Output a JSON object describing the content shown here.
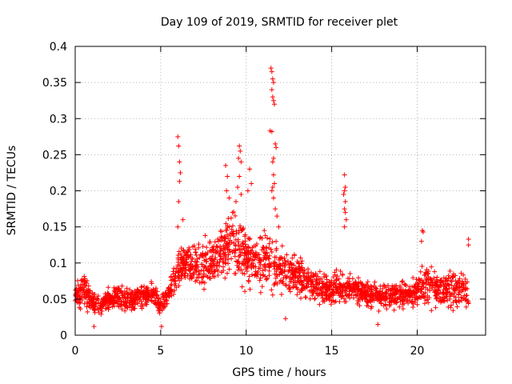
{
  "chart_data": {
    "type": "scatter",
    "title": "Day 109 of 2019, SRMTID for receiver plet",
    "xlabel": "GPS time / hours",
    "ylabel": "SRMTID / TECUs",
    "xlim": [
      0,
      24
    ],
    "ylim": [
      0,
      0.4
    ],
    "xticks": [
      0,
      5,
      10,
      15,
      20
    ],
    "xtick_labels": [
      "0",
      "5",
      "10",
      "15",
      "20"
    ],
    "yticks": [
      0,
      0.05,
      0.1,
      0.15,
      0.2,
      0.25,
      0.3,
      0.35,
      0.4
    ],
    "ytick_labels": [
      "0",
      "0.05",
      "0.1",
      "0.15",
      "0.2",
      "0.25",
      "0.3",
      "0.35",
      "0.4"
    ],
    "grid": true,
    "marker": "+",
    "series": [
      {
        "name": "SRMTID",
        "color": "#ff0000",
        "envelope": {
          "description": "typical range of SRMTID values by hour (data units)",
          "hours": [
            0,
            0.5,
            1,
            1.5,
            2,
            2.5,
            3,
            3.5,
            4,
            4.5,
            5,
            5.5,
            6,
            6.5,
            7,
            7.5,
            8,
            8.5,
            9,
            9.5,
            10,
            10.5,
            11,
            11.5,
            12,
            12.5,
            13,
            13.5,
            14,
            14.5,
            15,
            15.5,
            16,
            16.5,
            17,
            17.5,
            18,
            18.5,
            19,
            19.5,
            20,
            20.5,
            21,
            21.5,
            22,
            22.5,
            23
          ],
          "low": [
            0.03,
            0.03,
            0.02,
            0.025,
            0.03,
            0.03,
            0.03,
            0.03,
            0.035,
            0.035,
            0.02,
            0.04,
            0.05,
            0.06,
            0.05,
            0.05,
            0.06,
            0.07,
            0.06,
            0.06,
            0.05,
            0.05,
            0.05,
            0.05,
            0.05,
            0.05,
            0.045,
            0.04,
            0.04,
            0.035,
            0.035,
            0.035,
            0.035,
            0.035,
            0.035,
            0.03,
            0.03,
            0.03,
            0.03,
            0.03,
            0.03,
            0.03,
            0.03,
            0.03,
            0.025,
            0.03,
            0.03
          ],
          "high": [
            0.075,
            0.1,
            0.07,
            0.06,
            0.07,
            0.075,
            0.07,
            0.07,
            0.075,
            0.08,
            0.06,
            0.08,
            0.13,
            0.15,
            0.14,
            0.15,
            0.14,
            0.16,
            0.19,
            0.2,
            0.16,
            0.15,
            0.16,
            0.15,
            0.13,
            0.12,
            0.12,
            0.11,
            0.1,
            0.1,
            0.09,
            0.1,
            0.09,
            0.09,
            0.08,
            0.08,
            0.08,
            0.08,
            0.08,
            0.08,
            0.09,
            0.11,
            0.1,
            0.09,
            0.1,
            0.1,
            0.09
          ]
        },
        "points": [
          [
            6.0,
            0.275
          ],
          [
            6.05,
            0.262
          ],
          [
            6.1,
            0.24
          ],
          [
            6.15,
            0.225
          ],
          [
            6.1,
            0.213
          ],
          [
            6.05,
            0.185
          ],
          [
            6.3,
            0.16
          ],
          [
            6.0,
            0.15
          ],
          [
            8.8,
            0.235
          ],
          [
            8.9,
            0.22
          ],
          [
            8.85,
            0.2
          ],
          [
            9.0,
            0.19
          ],
          [
            9.2,
            0.17
          ],
          [
            9.6,
            0.262
          ],
          [
            9.65,
            0.255
          ],
          [
            9.55,
            0.245
          ],
          [
            9.7,
            0.24
          ],
          [
            9.6,
            0.22
          ],
          [
            9.5,
            0.205
          ],
          [
            9.7,
            0.195
          ],
          [
            9.4,
            0.185
          ],
          [
            10.2,
            0.23
          ],
          [
            10.3,
            0.21
          ],
          [
            10.1,
            0.2
          ],
          [
            11.45,
            0.37
          ],
          [
            11.5,
            0.365
          ],
          [
            11.55,
            0.355
          ],
          [
            11.6,
            0.35
          ],
          [
            11.5,
            0.34
          ],
          [
            11.55,
            0.33
          ],
          [
            11.6,
            0.325
          ],
          [
            11.65,
            0.32
          ],
          [
            11.4,
            0.283
          ],
          [
            11.5,
            0.282
          ],
          [
            11.7,
            0.265
          ],
          [
            11.75,
            0.26
          ],
          [
            11.6,
            0.245
          ],
          [
            11.55,
            0.24
          ],
          [
            11.6,
            0.222
          ],
          [
            11.65,
            0.21
          ],
          [
            11.55,
            0.205
          ],
          [
            11.5,
            0.2
          ],
          [
            11.6,
            0.19
          ],
          [
            11.7,
            0.175
          ],
          [
            11.8,
            0.165
          ],
          [
            11.9,
            0.15
          ],
          [
            15.75,
            0.222
          ],
          [
            15.8,
            0.205
          ],
          [
            15.75,
            0.2
          ],
          [
            15.7,
            0.195
          ],
          [
            15.8,
            0.185
          ],
          [
            15.75,
            0.175
          ],
          [
            15.8,
            0.17
          ],
          [
            15.85,
            0.16
          ],
          [
            15.75,
            0.15
          ],
          [
            20.3,
            0.145
          ],
          [
            20.35,
            0.143
          ],
          [
            20.25,
            0.13
          ],
          [
            23.0,
            0.133
          ],
          [
            23.0,
            0.125
          ],
          [
            12.3,
            0.023
          ],
          [
            17.7,
            0.015
          ],
          [
            5.05,
            0.012
          ],
          [
            1.1,
            0.012
          ]
        ]
      }
    ]
  }
}
